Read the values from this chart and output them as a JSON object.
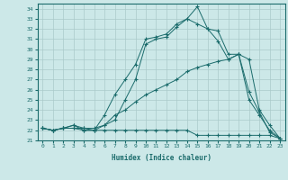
{
  "xlabel": "Humidex (Indice chaleur)",
  "bg_color": "#cce8e8",
  "line_color": "#1a6b6b",
  "grid_color": "#aacaca",
  "xlim": [
    -0.5,
    23.5
  ],
  "ylim": [
    21,
    34.5
  ],
  "xticks": [
    0,
    1,
    2,
    3,
    4,
    5,
    6,
    7,
    8,
    9,
    10,
    11,
    12,
    13,
    14,
    15,
    16,
    17,
    18,
    19,
    20,
    21,
    22,
    23
  ],
  "yticks": [
    21,
    22,
    23,
    24,
    25,
    26,
    27,
    28,
    29,
    30,
    31,
    32,
    33,
    34
  ],
  "lines": [
    {
      "x": [
        0,
        1,
        2,
        3,
        4,
        5,
        6,
        7,
        8,
        9,
        10,
        11,
        12,
        13,
        14,
        15,
        16,
        17,
        18,
        19,
        20,
        21,
        22,
        23
      ],
      "y": [
        22.2,
        22.0,
        22.2,
        22.2,
        22.2,
        22.0,
        23.5,
        25.5,
        27.0,
        28.5,
        31.0,
        31.2,
        31.5,
        32.5,
        33.0,
        34.2,
        32.0,
        31.8,
        29.5,
        29.5,
        29.0,
        24.0,
        22.5,
        21.2
      ]
    },
    {
      "x": [
        0,
        1,
        2,
        3,
        4,
        5,
        6,
        7,
        8,
        9,
        10,
        11,
        12,
        13,
        14,
        15,
        16,
        17,
        18,
        19,
        20,
        21,
        22,
        23
      ],
      "y": [
        22.2,
        22.0,
        22.2,
        22.2,
        22.0,
        22.0,
        22.5,
        23.0,
        25.0,
        27.0,
        30.5,
        31.0,
        31.2,
        32.2,
        33.0,
        32.5,
        32.0,
        30.8,
        29.0,
        29.5,
        25.0,
        23.5,
        22.0,
        21.2
      ]
    },
    {
      "x": [
        0,
        1,
        2,
        3,
        4,
        5,
        6,
        7,
        8,
        9,
        10,
        11,
        12,
        13,
        14,
        15,
        16,
        17,
        18,
        19,
        20,
        21,
        22,
        23
      ],
      "y": [
        22.2,
        22.0,
        22.2,
        22.5,
        22.2,
        22.2,
        22.5,
        23.5,
        24.0,
        24.8,
        25.5,
        26.0,
        26.5,
        27.0,
        27.8,
        28.2,
        28.5,
        28.8,
        29.0,
        29.5,
        25.8,
        23.8,
        21.8,
        21.2
      ]
    },
    {
      "x": [
        0,
        1,
        2,
        3,
        4,
        5,
        6,
        7,
        8,
        9,
        10,
        11,
        12,
        13,
        14,
        15,
        16,
        17,
        18,
        19,
        20,
        21,
        22,
        23
      ],
      "y": [
        22.2,
        22.0,
        22.2,
        22.5,
        22.0,
        22.0,
        22.0,
        22.0,
        22.0,
        22.0,
        22.0,
        22.0,
        22.0,
        22.0,
        22.0,
        21.5,
        21.5,
        21.5,
        21.5,
        21.5,
        21.5,
        21.5,
        21.5,
        21.2
      ]
    }
  ]
}
